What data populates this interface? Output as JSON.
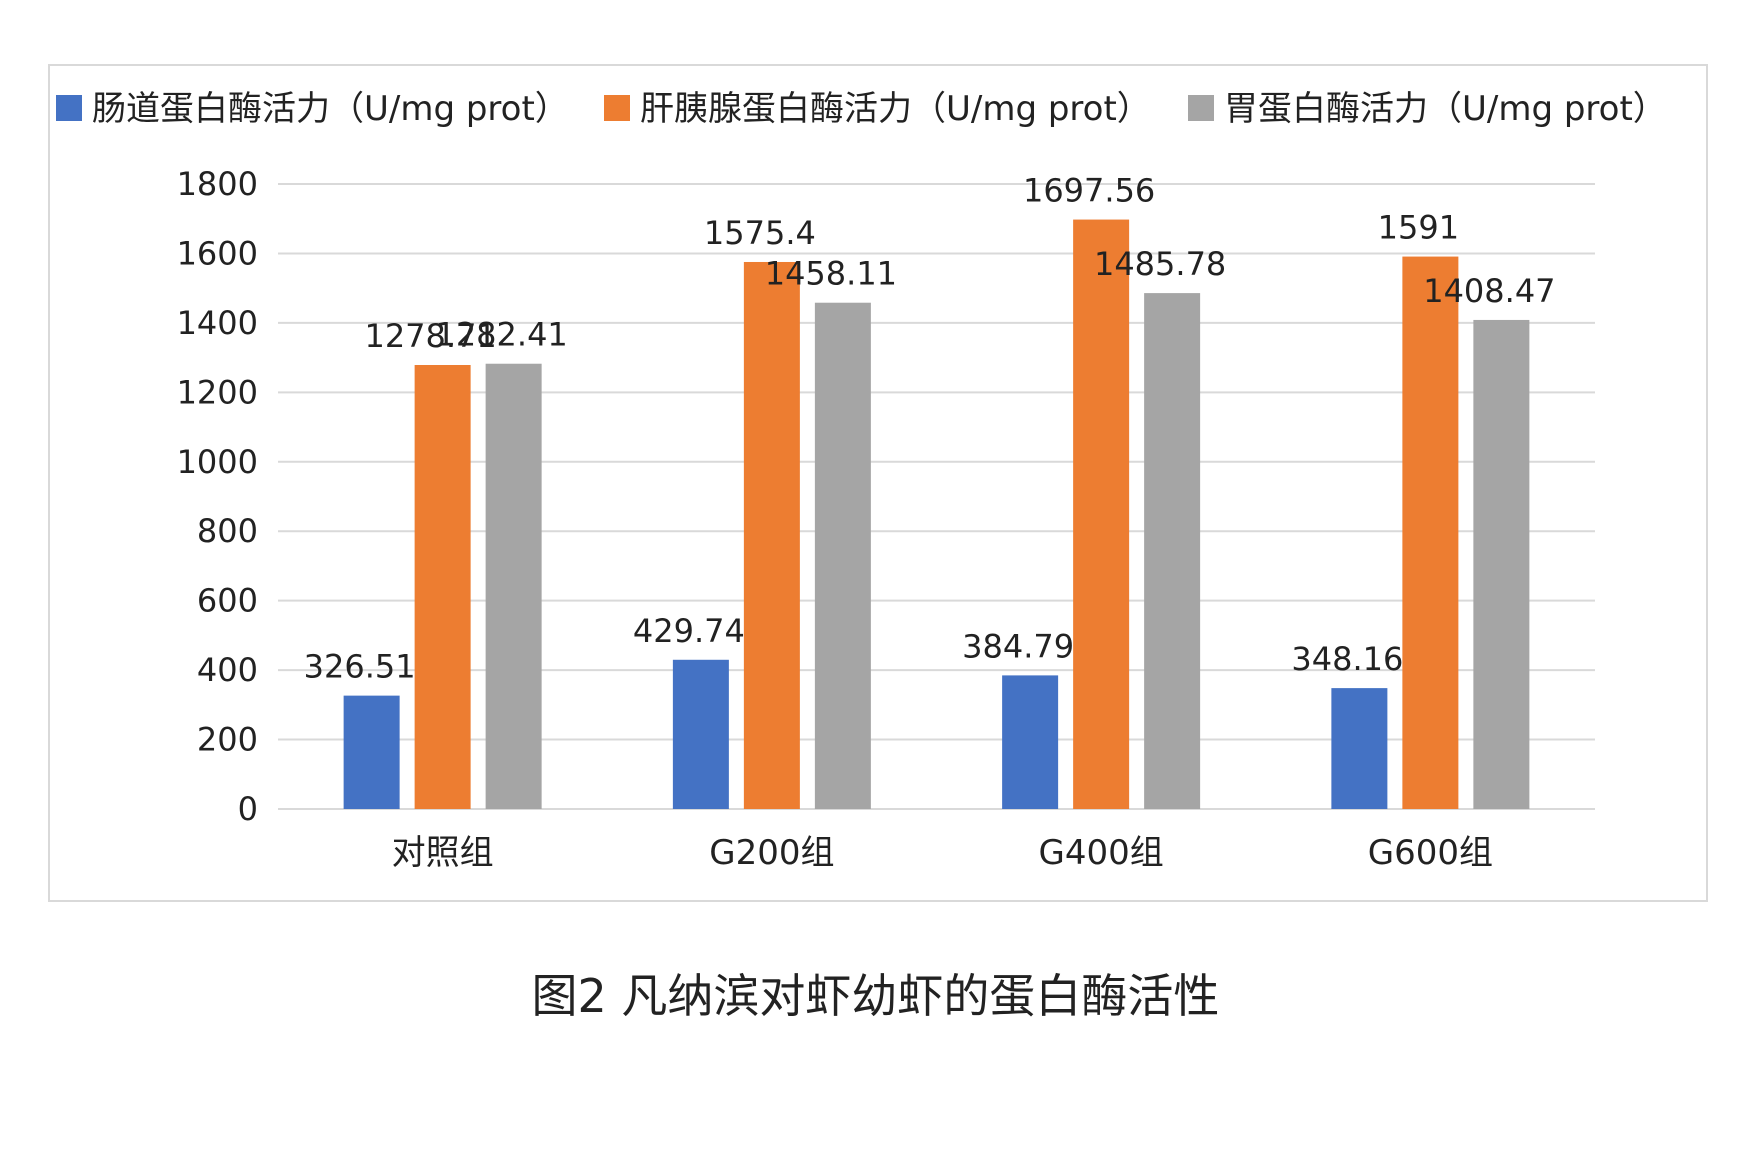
{
  "caption": "图2 凡纳滨对虾幼虾的蛋白酶活性",
  "chart_data": {
    "type": "bar",
    "categories": [
      "对照组",
      "G200组",
      "G400组",
      "G600组"
    ],
    "series": [
      {
        "name": "肠道蛋白酶活力（U/mg prot）",
        "color": "#4472c4",
        "values": [
          326.51,
          429.74,
          384.79,
          348.16
        ]
      },
      {
        "name": "肝胰腺蛋白酶活力（U/mg prot）",
        "color": "#ed7d31",
        "values": [
          1278.71,
          1575.4,
          1697.56,
          1591
        ]
      },
      {
        "name": "胃蛋白酶活力（U/mg prot）",
        "color": "#a5a5a5",
        "values": [
          1282.41,
          1458.11,
          1485.78,
          1408.47
        ]
      }
    ],
    "data_labels": [
      [
        "326.51",
        "429.74",
        "384.79",
        "348.16"
      ],
      [
        "1278.71",
        "1575.4",
        "1697.56",
        "1591"
      ],
      [
        "1282.41",
        "1458.11",
        "1485.78",
        "1408.47"
      ]
    ],
    "ylim": [
      0,
      1800
    ],
    "yticks": [
      0,
      200,
      400,
      600,
      800,
      1000,
      1200,
      1400,
      1600,
      1800
    ],
    "ytick_labels": [
      "0",
      "200",
      "400",
      "600",
      "800",
      "1000",
      "1200",
      "1400",
      "1600",
      "1800"
    ],
    "grid": true,
    "legend_position": "top",
    "gridline_color": "#d9d9d9"
  }
}
